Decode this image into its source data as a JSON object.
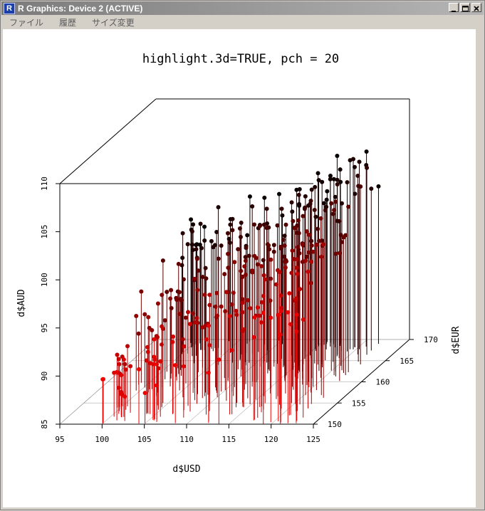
{
  "window": {
    "title": "R Graphics: Device 2 (ACTIVE)",
    "app_icon_letter": "R"
  },
  "menu": {
    "items": [
      "ファイル",
      "履歴",
      "サイズ変更"
    ]
  },
  "chart_data": {
    "type": "scatter3d",
    "title": "highlight.3d=TRUE, pch = 20",
    "xlabel": "d$USD",
    "ylabel": "d$EUR",
    "zlabel": "d$AUD",
    "xlim": [
      95,
      125
    ],
    "ylim": [
      150,
      170
    ],
    "zlim": [
      85,
      110
    ],
    "x_ticks": [
      "95",
      "100",
      "105",
      "110",
      "115",
      "120",
      "125"
    ],
    "y_ticks": [
      "150",
      "155",
      "160",
      "165",
      "170"
    ],
    "z_ticks": [
      "85",
      "90",
      "95",
      "100",
      "105",
      "110"
    ],
    "point_type": "filled circle with vertical drop line (pch = 20, type = h)",
    "highlight_3d": true,
    "color_scale": [
      "#ff0000",
      "#000000"
    ]
  }
}
